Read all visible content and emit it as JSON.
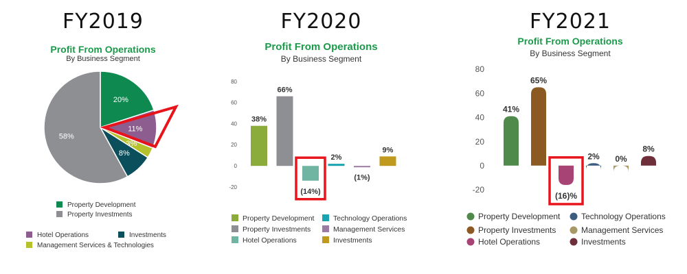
{
  "panels": [
    {
      "heading": "FY2019",
      "title": "Profit From Operations",
      "subtitle": "By Business Segment"
    },
    {
      "heading": "FY2020",
      "title": "Profit From Operations",
      "subtitle": "By Business Segment"
    },
    {
      "heading": "FY2021",
      "title": "Profit From Operations",
      "subtitle": "By Business Segment"
    }
  ],
  "chart_data": [
    {
      "type": "pie",
      "heading": "FY2019",
      "title": "Profit From Operations",
      "subtitle": "By Business Segment",
      "slices": [
        {
          "name": "Property Development",
          "value": 20,
          "label": "20%",
          "color": "#0e8a50"
        },
        {
          "name": "Hotel Operations",
          "value": 11,
          "label": "11%",
          "color": "#8e5d8f"
        },
        {
          "name": "Management Services & Technologies",
          "value": 3,
          "label": "3%",
          "color": "#b5c22c"
        },
        {
          "name": "Investments",
          "value": 8,
          "label": "8%",
          "color": "#0b4f5c"
        },
        {
          "name": "Property Investments",
          "value": 58,
          "label": "58%",
          "color": "#8d8f92"
        }
      ],
      "highlight": "Hotel Operations",
      "highlight_color": "#e8141b"
    },
    {
      "type": "bar",
      "heading": "FY2020",
      "title": "Profit From Operations",
      "subtitle": "By Business Segment",
      "ylim": [
        -20,
        80
      ],
      "yticks": [
        80,
        60,
        40,
        20,
        0,
        -20
      ],
      "categories": [
        "Property Development",
        "Property Investments",
        "Hotel Operations",
        "Technology Operations",
        "Management Services",
        "Investments"
      ],
      "values": [
        38,
        66,
        -14,
        2,
        -1,
        9
      ],
      "labels": [
        "38%",
        "66%",
        "(14%)",
        "2%",
        "(1%)",
        "9%"
      ],
      "colors": [
        "#8bac3a",
        "#8d8f92",
        "#6fb5a2",
        "#1aa3b0",
        "#9b7aa4",
        "#c09a1e"
      ],
      "highlight": "Hotel Operations",
      "highlight_color": "#e8141b"
    },
    {
      "type": "bar",
      "heading": "FY2021",
      "title": "Profit From Operations",
      "subtitle": "By Business Segment",
      "ylim": [
        -20,
        80
      ],
      "yticks": [
        80,
        60,
        40,
        20,
        0,
        -20
      ],
      "categories": [
        "Property Development",
        "Property Investments",
        "Hotel Operations",
        "Technology Operations",
        "Management Services",
        "Investments"
      ],
      "values": [
        41,
        65,
        -16,
        2,
        0,
        8
      ],
      "labels": [
        "41%",
        "65%",
        "(16)%",
        "2%",
        "0%",
        "8%"
      ],
      "colors": [
        "#4f8a4a",
        "#8a5a22",
        "#a84475",
        "#3b5e80",
        "#a89865",
        "#6e2e3a"
      ],
      "highlight": "Hotel Operations",
      "highlight_color": "#e8141b"
    }
  ]
}
